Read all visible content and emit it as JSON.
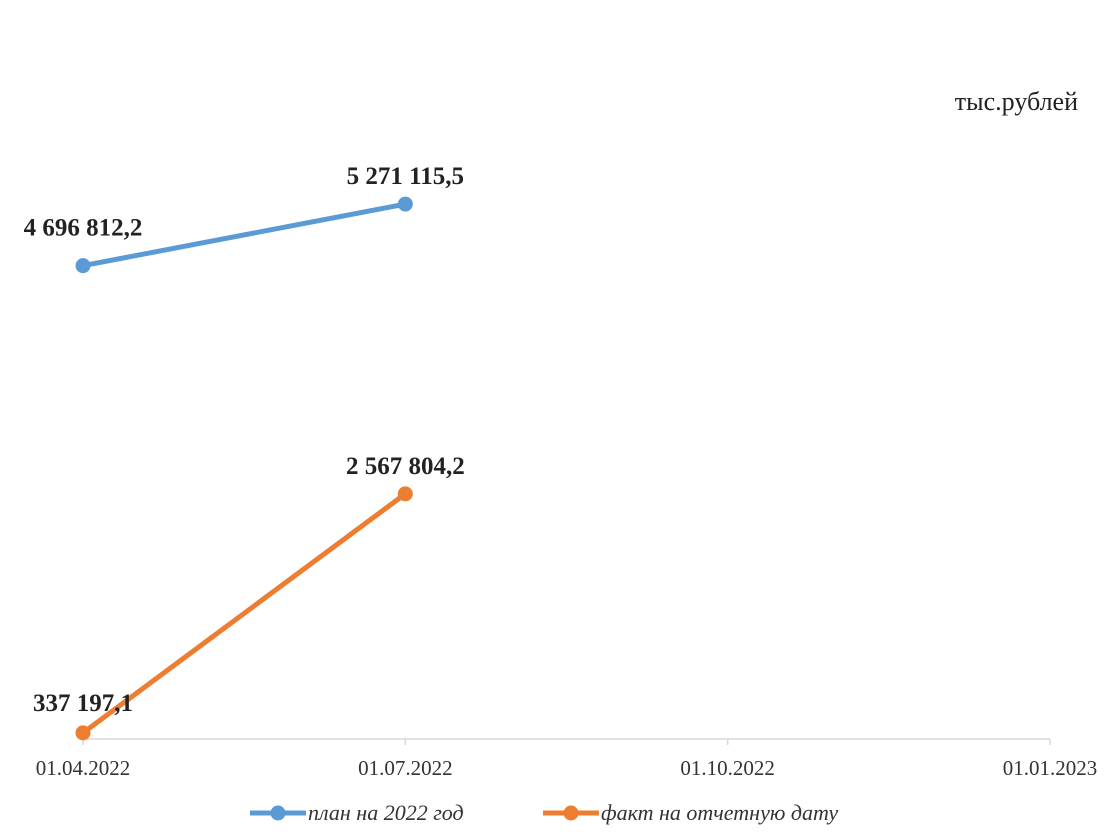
{
  "chart_data": {
    "type": "line",
    "unit_label": "тыс.рублей",
    "categories": [
      "01.04.2022",
      "01.07.2022",
      "01.10.2022",
      "01.01.2023"
    ],
    "series": [
      {
        "name": "план на 2022 год",
        "color": "#5B9BD5",
        "values": [
          4696812.2,
          5271115.5,
          null,
          null
        ],
        "labels": [
          "4 696 812,2",
          "5 271 115,5",
          null,
          null
        ]
      },
      {
        "name": "факт на отчетную дату",
        "color": "#ED7D31",
        "values": [
          337197.1,
          2567804.2,
          null,
          null
        ],
        "labels": [
          "337 197,1",
          "2 567 804,2",
          null,
          null
        ]
      }
    ],
    "ylim": [
      0,
      6000000
    ],
    "grid": false,
    "legend_position": "bottom"
  }
}
